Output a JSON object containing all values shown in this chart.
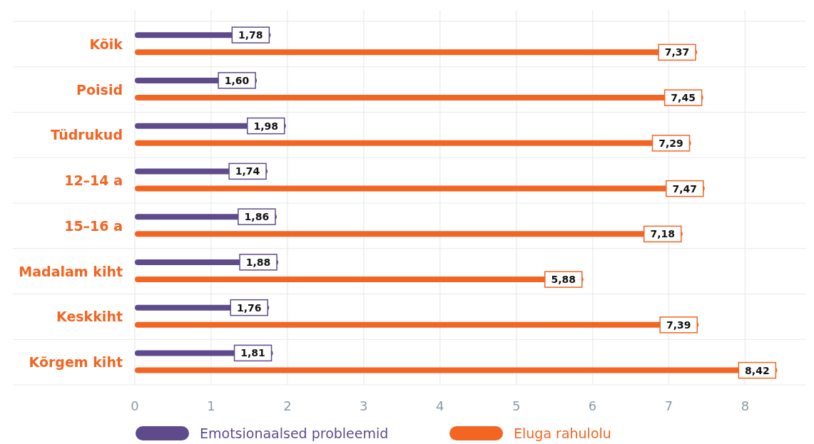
{
  "chart_data": {
    "type": "bar",
    "orientation": "horizontal",
    "categories": [
      "Kõik",
      "Poisid",
      "Tüdrukud",
      "12–14 a",
      "15–16 a",
      "Madalam kiht",
      "Keskkiht",
      "Kõrgem kiht"
    ],
    "series": [
      {
        "name": "Emotsionaalsed probleemid",
        "color": "#5f4b8b",
        "values": [
          1.78,
          1.6,
          1.98,
          1.74,
          1.86,
          1.88,
          1.76,
          1.81
        ],
        "value_labels": [
          "1,78",
          "1,60",
          "1,98",
          "1,74",
          "1,86",
          "1,88",
          "1,76",
          "1,81"
        ]
      },
      {
        "name": "Eluga rahulolu",
        "color": "#f26522",
        "values": [
          7.37,
          7.45,
          7.29,
          7.47,
          7.18,
          5.88,
          7.39,
          8.42
        ],
        "value_labels": [
          "7,37",
          "7,45",
          "7,29",
          "7,47",
          "7,18",
          "5,88",
          "7,39",
          "8,42"
        ]
      }
    ],
    "xlim": [
      0,
      8.8
    ],
    "xticks": [
      0,
      1,
      2,
      3,
      4,
      5,
      6,
      7,
      8
    ],
    "grid": "x",
    "legend": "bottom"
  }
}
